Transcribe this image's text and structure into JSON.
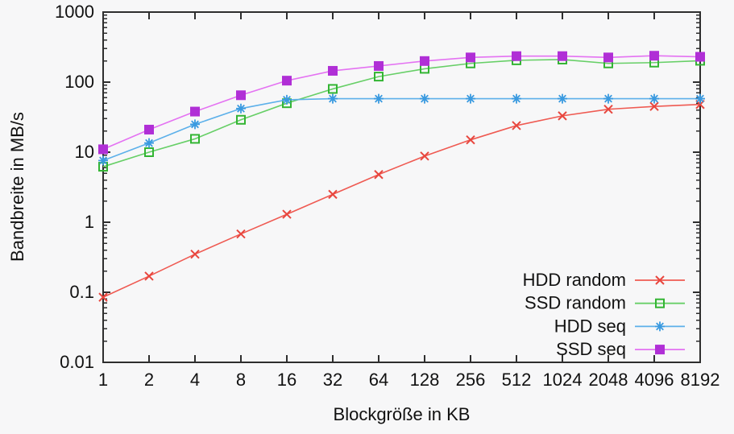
{
  "chart_data": {
    "type": "line",
    "title": "",
    "xlabel": "Blockgröße in KB",
    "ylabel": "Bandbreite in MB/s",
    "x_scale": "log2",
    "y_scale": "log10",
    "categories": [
      "1",
      "2",
      "4",
      "8",
      "16",
      "32",
      "64",
      "128",
      "256",
      "512",
      "1024",
      "2048",
      "4096",
      "8192"
    ],
    "x_values": [
      1,
      2,
      4,
      8,
      16,
      32,
      64,
      128,
      256,
      512,
      1024,
      2048,
      4096,
      8192
    ],
    "ylim": [
      0.01,
      1000
    ],
    "y_tick_labels": [
      "0.01",
      "0.1",
      "1",
      "10",
      "100",
      "1000"
    ],
    "y_tick_values": [
      0.01,
      0.1,
      1,
      10,
      100,
      1000
    ],
    "grid": false,
    "legend_position": "inside-bottom-right",
    "series": [
      {
        "name": "HDD random",
        "marker": "cross",
        "marker_color": "#e8463e",
        "line_color": "#ef5a52",
        "values": [
          0.085,
          0.17,
          0.35,
          0.68,
          1.3,
          2.5,
          4.8,
          8.8,
          15,
          24,
          33,
          41,
          45,
          48
        ]
      },
      {
        "name": "SSD random",
        "marker": "open-square",
        "marker_color": "#33b533",
        "line_color": "#67cf67",
        "values": [
          6.2,
          10,
          15.5,
          29,
          50,
          80,
          120,
          155,
          185,
          205,
          210,
          185,
          190,
          202
        ]
      },
      {
        "name": "HDD seq",
        "marker": "asterisk",
        "marker_color": "#3a9ae0",
        "line_color": "#5cb0ea",
        "values": [
          7.6,
          13.5,
          25,
          42,
          56,
          58,
          58,
          58,
          58,
          58,
          58,
          58,
          58,
          58
        ]
      },
      {
        "name": "SSD seq",
        "marker": "filled-square",
        "marker_color": "#b02fd6",
        "line_color": "#e472f2",
        "values": [
          11,
          21,
          38,
          65,
          105,
          145,
          170,
          200,
          225,
          235,
          235,
          225,
          238,
          230
        ]
      }
    ],
    "colors": {
      "background": "#f7f7f8",
      "axis": "#2e2e2e",
      "text": "#111111"
    }
  }
}
